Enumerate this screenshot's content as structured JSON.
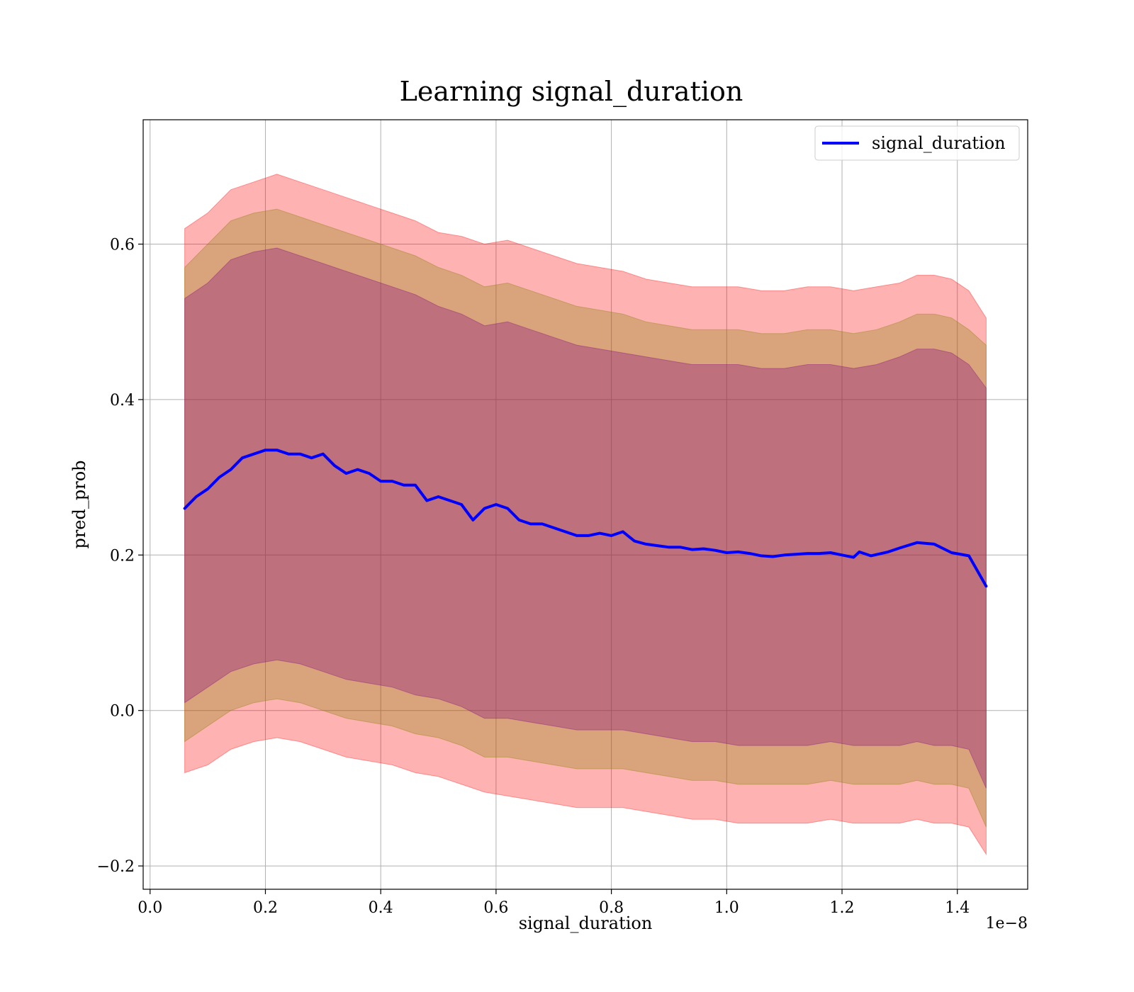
{
  "chart_data": {
    "type": "line",
    "title": "Learning signal_duration",
    "xlabel": "signal_duration",
    "ylabel": "pred_prob",
    "x_offset_label": "1e−8",
    "xlim": [
      -0.012,
      1.522
    ],
    "ylim": [
      -0.23,
      0.76
    ],
    "xticks": [
      0.0,
      0.2,
      0.4,
      0.6,
      0.8,
      1.0,
      1.2,
      1.4
    ],
    "xtick_labels": [
      "0.0",
      "0.2",
      "0.4",
      "0.6",
      "0.8",
      "1.0",
      "1.2",
      "1.4"
    ],
    "yticks": [
      -0.2,
      0.0,
      0.2,
      0.4,
      0.6
    ],
    "ytick_labels": [
      "−0.2",
      "0.0",
      "0.2",
      "0.4",
      "0.6"
    ],
    "grid": true,
    "legend": {
      "position": "top-right",
      "entries": [
        "signal_duration"
      ]
    },
    "series": [
      {
        "name": "signal_duration",
        "color": "#0000ff",
        "x": [
          0.06,
          0.08,
          0.1,
          0.12,
          0.14,
          0.16,
          0.18,
          0.2,
          0.22,
          0.24,
          0.26,
          0.28,
          0.3,
          0.32,
          0.34,
          0.36,
          0.38,
          0.4,
          0.42,
          0.44,
          0.46,
          0.48,
          0.5,
          0.52,
          0.54,
          0.56,
          0.58,
          0.6,
          0.62,
          0.64,
          0.66,
          0.68,
          0.7,
          0.72,
          0.74,
          0.76,
          0.78,
          0.8,
          0.82,
          0.84,
          0.86,
          0.88,
          0.9,
          0.92,
          0.94,
          0.96,
          0.98,
          1.0,
          1.02,
          1.04,
          1.06,
          1.08,
          1.1,
          1.12,
          1.14,
          1.16,
          1.18,
          1.2,
          1.22,
          1.23,
          1.25,
          1.28,
          1.3,
          1.33,
          1.36,
          1.39,
          1.42,
          1.45
        ],
        "y": [
          0.26,
          0.275,
          0.285,
          0.3,
          0.31,
          0.325,
          0.33,
          0.335,
          0.335,
          0.33,
          0.33,
          0.325,
          0.33,
          0.315,
          0.305,
          0.31,
          0.305,
          0.295,
          0.295,
          0.29,
          0.29,
          0.27,
          0.275,
          0.27,
          0.265,
          0.245,
          0.26,
          0.265,
          0.26,
          0.245,
          0.24,
          0.24,
          0.235,
          0.23,
          0.225,
          0.225,
          0.228,
          0.225,
          0.23,
          0.218,
          0.214,
          0.212,
          0.21,
          0.21,
          0.207,
          0.208,
          0.206,
          0.203,
          0.204,
          0.202,
          0.199,
          0.198,
          0.2,
          0.201,
          0.202,
          0.202,
          0.203,
          0.2,
          0.197,
          0.204,
          0.199,
          0.204,
          0.209,
          0.216,
          0.214,
          0.203,
          0.199,
          0.16
        ]
      }
    ],
    "bands": [
      {
        "name": "outer",
        "color": "#ff0000",
        "opacity": 0.3,
        "x": [
          0.06,
          0.1,
          0.14,
          0.18,
          0.22,
          0.26,
          0.3,
          0.34,
          0.38,
          0.42,
          0.46,
          0.5,
          0.54,
          0.58,
          0.62,
          0.66,
          0.7,
          0.74,
          0.78,
          0.82,
          0.86,
          0.9,
          0.94,
          0.98,
          1.02,
          1.06,
          1.1,
          1.14,
          1.18,
          1.22,
          1.26,
          1.3,
          1.33,
          1.36,
          1.39,
          1.42,
          1.45
        ],
        "upper": [
          0.62,
          0.64,
          0.67,
          0.68,
          0.69,
          0.68,
          0.67,
          0.66,
          0.65,
          0.64,
          0.63,
          0.615,
          0.61,
          0.6,
          0.605,
          0.595,
          0.585,
          0.575,
          0.57,
          0.565,
          0.555,
          0.55,
          0.545,
          0.545,
          0.545,
          0.54,
          0.54,
          0.545,
          0.545,
          0.54,
          0.545,
          0.55,
          0.56,
          0.56,
          0.555,
          0.54,
          0.505
        ],
        "lower": [
          -0.08,
          -0.07,
          -0.05,
          -0.04,
          -0.035,
          -0.04,
          -0.05,
          -0.06,
          -0.065,
          -0.07,
          -0.08,
          -0.085,
          -0.095,
          -0.105,
          -0.11,
          -0.115,
          -0.12,
          -0.125,
          -0.125,
          -0.125,
          -0.13,
          -0.135,
          -0.14,
          -0.14,
          -0.145,
          -0.145,
          -0.145,
          -0.145,
          -0.14,
          -0.145,
          -0.145,
          -0.145,
          -0.14,
          -0.145,
          -0.145,
          -0.15,
          -0.185
        ]
      },
      {
        "name": "middle",
        "color": "#808000",
        "opacity": 0.3,
        "x": [
          0.06,
          0.1,
          0.14,
          0.18,
          0.22,
          0.26,
          0.3,
          0.34,
          0.38,
          0.42,
          0.46,
          0.5,
          0.54,
          0.58,
          0.62,
          0.66,
          0.7,
          0.74,
          0.78,
          0.82,
          0.86,
          0.9,
          0.94,
          0.98,
          1.02,
          1.06,
          1.1,
          1.14,
          1.18,
          1.22,
          1.26,
          1.3,
          1.33,
          1.36,
          1.39,
          1.42,
          1.45
        ],
        "upper": [
          0.57,
          0.6,
          0.63,
          0.64,
          0.645,
          0.635,
          0.625,
          0.615,
          0.605,
          0.595,
          0.585,
          0.57,
          0.56,
          0.545,
          0.55,
          0.54,
          0.53,
          0.52,
          0.515,
          0.51,
          0.5,
          0.495,
          0.49,
          0.49,
          0.49,
          0.485,
          0.485,
          0.49,
          0.49,
          0.485,
          0.49,
          0.5,
          0.51,
          0.51,
          0.505,
          0.49,
          0.47
        ],
        "lower": [
          -0.04,
          -0.02,
          0.0,
          0.01,
          0.015,
          0.01,
          0.0,
          -0.01,
          -0.015,
          -0.02,
          -0.03,
          -0.035,
          -0.045,
          -0.06,
          -0.06,
          -0.065,
          -0.07,
          -0.075,
          -0.075,
          -0.075,
          -0.08,
          -0.085,
          -0.09,
          -0.09,
          -0.095,
          -0.095,
          -0.095,
          -0.095,
          -0.09,
          -0.095,
          -0.095,
          -0.095,
          -0.09,
          -0.095,
          -0.095,
          -0.1,
          -0.15
        ]
      },
      {
        "name": "inner",
        "color": "#800080",
        "opacity": 0.3,
        "x": [
          0.06,
          0.1,
          0.14,
          0.18,
          0.22,
          0.26,
          0.3,
          0.34,
          0.38,
          0.42,
          0.46,
          0.5,
          0.54,
          0.58,
          0.62,
          0.66,
          0.7,
          0.74,
          0.78,
          0.82,
          0.86,
          0.9,
          0.94,
          0.98,
          1.02,
          1.06,
          1.1,
          1.14,
          1.18,
          1.22,
          1.26,
          1.3,
          1.33,
          1.36,
          1.39,
          1.42,
          1.45
        ],
        "upper": [
          0.53,
          0.55,
          0.58,
          0.59,
          0.595,
          0.585,
          0.575,
          0.565,
          0.555,
          0.545,
          0.535,
          0.52,
          0.51,
          0.495,
          0.5,
          0.49,
          0.48,
          0.47,
          0.465,
          0.46,
          0.455,
          0.45,
          0.445,
          0.445,
          0.445,
          0.44,
          0.44,
          0.445,
          0.445,
          0.44,
          0.445,
          0.455,
          0.465,
          0.465,
          0.46,
          0.445,
          0.415
        ],
        "lower": [
          0.01,
          0.03,
          0.05,
          0.06,
          0.065,
          0.06,
          0.05,
          0.04,
          0.035,
          0.03,
          0.02,
          0.015,
          0.005,
          -0.01,
          -0.01,
          -0.015,
          -0.02,
          -0.025,
          -0.025,
          -0.025,
          -0.03,
          -0.035,
          -0.04,
          -0.04,
          -0.045,
          -0.045,
          -0.045,
          -0.045,
          -0.04,
          -0.045,
          -0.045,
          -0.045,
          -0.04,
          -0.045,
          -0.045,
          -0.05,
          -0.1
        ]
      }
    ]
  }
}
